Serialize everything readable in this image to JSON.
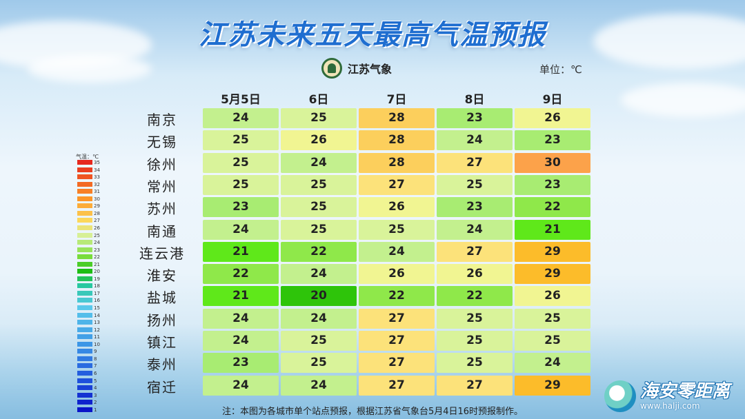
{
  "title": "江苏未来五天最高气温预报",
  "logo_text": "江苏气象",
  "unit_label": "单位：℃",
  "footnote": "注：本图为各城市单个站点预报，根据江苏省气象台5月4日16时预报制作。",
  "watermark": {
    "name": "海安零距离",
    "url": "www.halji.com"
  },
  "chart_data": {
    "type": "heatmap",
    "title": "江苏未来五天最高气温预报",
    "unit": "℃",
    "x": [
      "5月5日",
      "6日",
      "7日",
      "8日",
      "9日"
    ],
    "y": [
      "南京",
      "无锡",
      "徐州",
      "常州",
      "苏州",
      "南通",
      "连云港",
      "淮安",
      "盐城",
      "扬州",
      "镇江",
      "泰州",
      "宿迁"
    ],
    "values": [
      [
        24,
        25,
        28,
        23,
        26
      ],
      [
        25,
        26,
        28,
        24,
        23
      ],
      [
        25,
        24,
        28,
        27,
        30
      ],
      [
        25,
        25,
        27,
        25,
        23
      ],
      [
        23,
        25,
        26,
        23,
        22
      ],
      [
        24,
        25,
        25,
        24,
        21
      ],
      [
        21,
        22,
        24,
        27,
        29
      ],
      [
        22,
        24,
        26,
        26,
        29
      ],
      [
        21,
        20,
        22,
        22,
        26
      ],
      [
        24,
        24,
        27,
        25,
        25
      ],
      [
        24,
        25,
        27,
        25,
        25
      ],
      [
        23,
        25,
        27,
        25,
        24
      ],
      [
        24,
        24,
        27,
        27,
        29
      ]
    ],
    "color_scale": {
      "title": "气温：℃",
      "ticks": [
        35,
        34,
        33,
        32,
        31,
        30,
        29,
        28,
        27,
        26,
        25,
        24,
        23,
        22,
        21,
        20,
        19,
        18,
        17,
        16,
        15,
        14,
        13,
        12,
        11,
        10,
        9,
        8,
        7,
        6,
        5,
        4,
        3,
        2,
        1
      ],
      "colors": {
        "20": "#2ec40a",
        "21": "#5fe81a",
        "22": "#8fe84a",
        "23": "#a8ec72",
        "24": "#c3f08e",
        "25": "#d9f39a",
        "26": "#f1f592",
        "27": "#fce27a",
        "28": "#fccf5c",
        "29": "#fcbc2a",
        "30": "#fca24a"
      }
    }
  }
}
